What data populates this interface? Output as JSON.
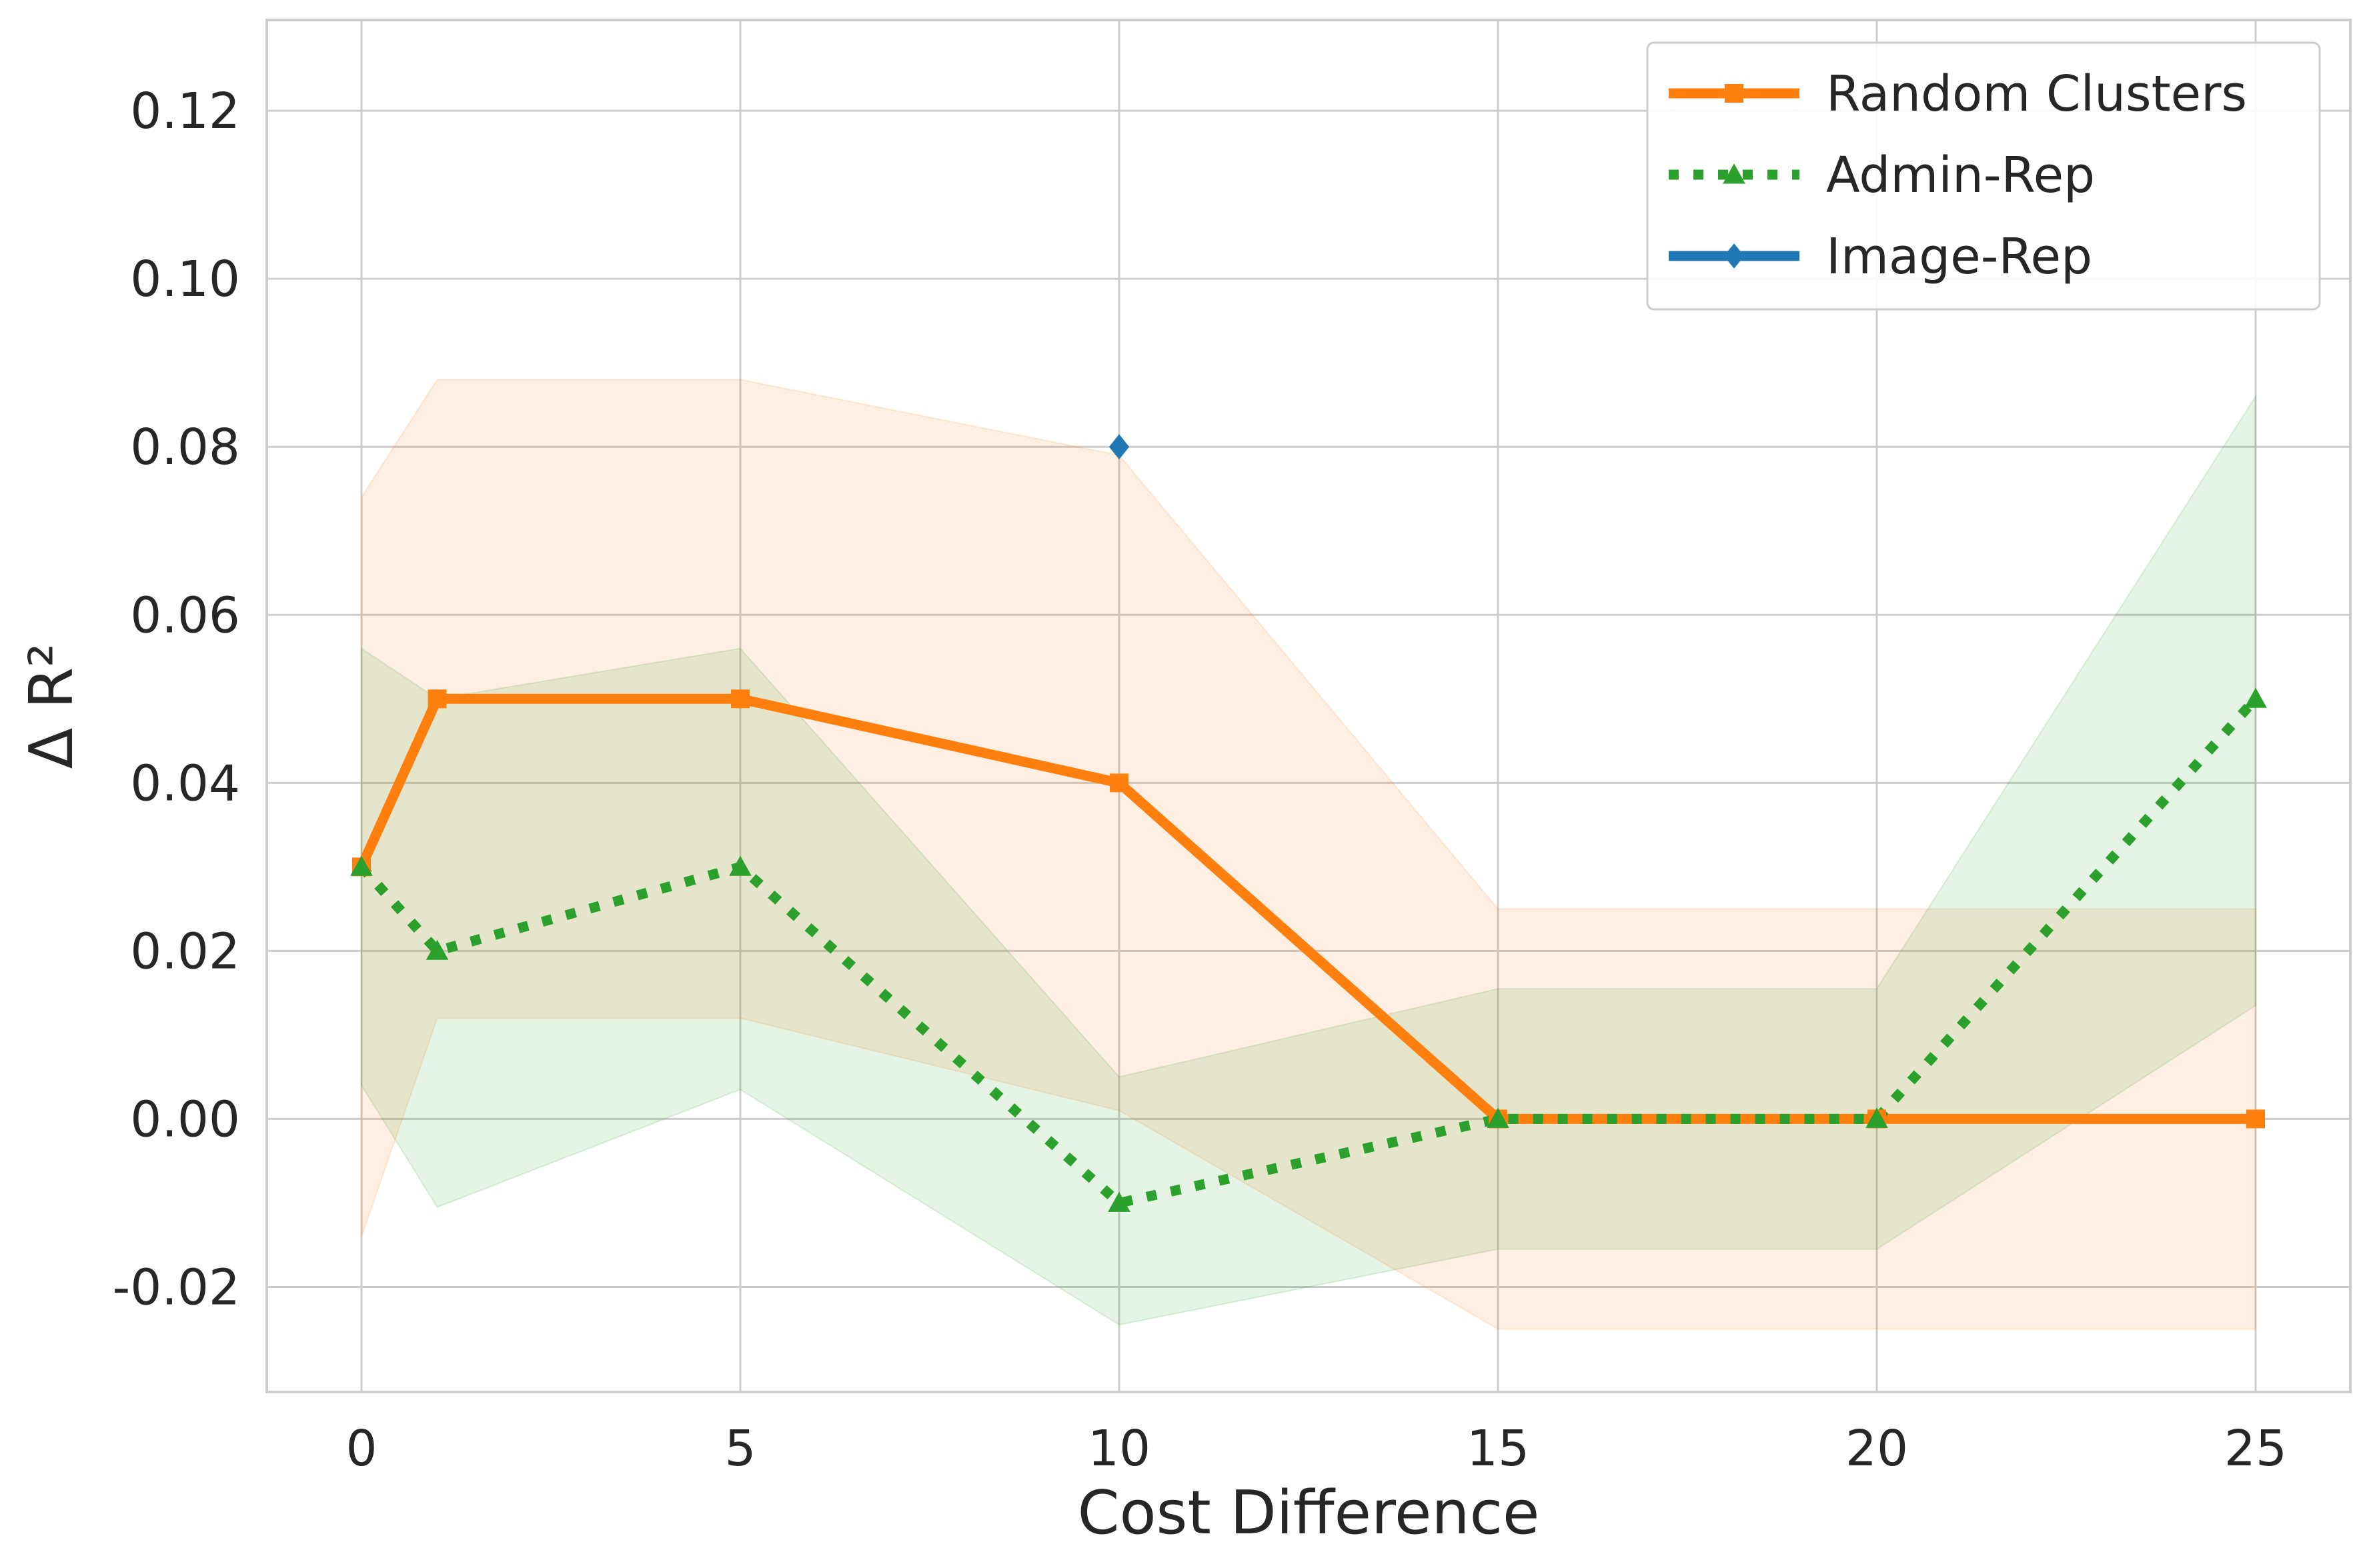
{
  "chart_data": {
    "type": "line",
    "xlabel": "Cost Difference",
    "ylabel": "Δ R²",
    "xlim": [
      -1.25,
      26.25
    ],
    "ylim": [
      -0.0325,
      0.1308
    ],
    "xticks": [
      0,
      5,
      10,
      15,
      20,
      25
    ],
    "xtick_labels": [
      "0",
      "5",
      "10",
      "15",
      "20",
      "25"
    ],
    "yticks": [
      -0.02,
      0.0,
      0.02,
      0.04,
      0.06,
      0.08,
      0.1,
      0.12
    ],
    "ytick_labels": [
      "-0.02",
      "0.00",
      "0.02",
      "0.04",
      "0.06",
      "0.08",
      "0.10",
      "0.12"
    ],
    "grid": true,
    "legend_position": "top-right",
    "series": [
      {
        "name": "Random Clusters",
        "color": "#ff7f0e",
        "line_style": "solid",
        "marker": "square",
        "x": [
          0,
          1,
          5,
          10,
          15,
          20,
          25
        ],
        "y": [
          0.03,
          0.05,
          0.05,
          0.04,
          0.0,
          0.0,
          0.0
        ],
        "band_upper": [
          0.074,
          0.088,
          0.088,
          0.079,
          0.025,
          0.025,
          0.025
        ],
        "band_lower": [
          -0.014,
          0.012,
          0.012,
          0.001,
          -0.025,
          -0.025,
          -0.025
        ]
      },
      {
        "name": "Admin-Rep",
        "color": "#2ca02c",
        "line_style": "dotted",
        "marker": "triangle",
        "x": [
          0,
          1,
          5,
          10,
          15,
          20,
          25
        ],
        "y": [
          0.03,
          0.02,
          0.03,
          -0.01,
          0.0,
          0.0,
          0.05
        ],
        "band_upper": [
          0.056,
          0.05,
          0.056,
          0.005,
          0.0155,
          0.0155,
          0.086
        ],
        "band_lower": [
          0.004,
          -0.0105,
          0.0035,
          -0.0245,
          -0.0155,
          -0.0155,
          0.0135
        ]
      },
      {
        "name": "Image-Rep",
        "color": "#1f77b4",
        "line_style": "solid",
        "marker": "diamond",
        "x": [
          10
        ],
        "y": [
          0.08
        ]
      }
    ]
  }
}
